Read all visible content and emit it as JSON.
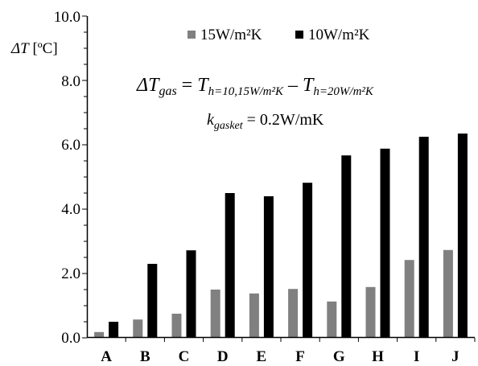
{
  "chart_data": {
    "type": "bar",
    "categories": [
      "A",
      "B",
      "C",
      "D",
      "E",
      "F",
      "G",
      "H",
      "I",
      "J"
    ],
    "series": [
      {
        "name": "15W/m²K",
        "color": "#808080",
        "values": [
          0.18,
          0.57,
          0.75,
          1.5,
          1.38,
          1.52,
          1.13,
          1.58,
          2.42,
          2.73
        ]
      },
      {
        "name": "10W/m²K",
        "color": "#000000",
        "values": [
          0.5,
          2.3,
          2.72,
          4.5,
          4.4,
          4.82,
          5.67,
          5.88,
          6.25,
          6.35
        ]
      }
    ],
    "ylim": [
      0,
      10
    ],
    "yticks": [
      "0.0",
      "2.0",
      "4.0",
      "6.0",
      "8.0",
      "10.0"
    ],
    "ylabel": {
      "symbol": "ΔT",
      "unit": " [ºC]"
    },
    "legend_position": "top-center",
    "grid": false,
    "annotations": {
      "eq1": {
        "lhs": "ΔT",
        "lhs_sub": "gas",
        "eq": " = ",
        "t1": "T",
        "t1_sub": "h=10,15W/m²K",
        "minus": " – ",
        "t2": "T",
        "t2_sub": "h=20W/m²K"
      },
      "eq2": {
        "k": "k",
        "k_sub": "gasket",
        "rest": " = 0.2W/mK"
      }
    }
  }
}
